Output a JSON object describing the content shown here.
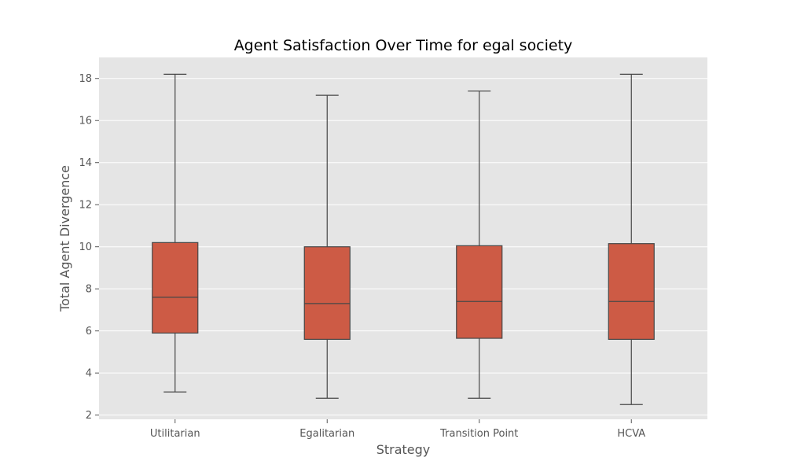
{
  "chart_data": {
    "type": "box",
    "title": "Agent Satisfaction Over Time for egal society",
    "xlabel": "Strategy",
    "ylabel": "Total Agent Divergence",
    "ylim": [
      1.8,
      19.0
    ],
    "yticks": [
      2,
      4,
      6,
      8,
      10,
      12,
      14,
      16,
      18
    ],
    "grid": true,
    "categories": [
      "Utilitarian",
      "Egalitarian",
      "Transition Point",
      "HCVA"
    ],
    "boxes": [
      {
        "category": "Utilitarian",
        "whisker_low": 3.1,
        "q1": 5.9,
        "median": 7.6,
        "q3": 10.2,
        "whisker_high": 18.2
      },
      {
        "category": "Egalitarian",
        "whisker_low": 2.8,
        "q1": 5.6,
        "median": 7.3,
        "q3": 10.0,
        "whisker_high": 17.2
      },
      {
        "category": "Transition Point",
        "whisker_low": 2.8,
        "q1": 5.65,
        "median": 7.4,
        "q3": 10.05,
        "whisker_high": 17.4
      },
      {
        "category": "HCVA",
        "whisker_low": 2.5,
        "q1": 5.6,
        "median": 7.4,
        "q3": 10.15,
        "whisker_high": 18.2
      }
    ],
    "colors": {
      "box_fill": "#cd5b45",
      "box_edge": "#474747",
      "plot_bg": "#e5e5e5",
      "grid": "#ffffff"
    }
  }
}
